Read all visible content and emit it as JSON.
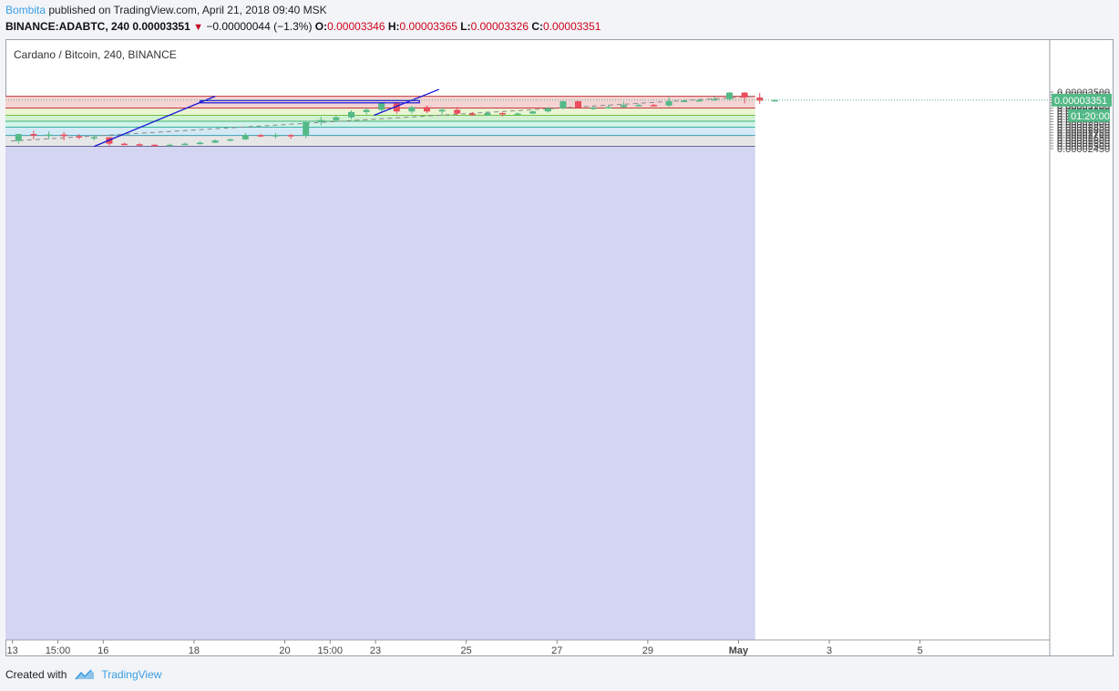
{
  "header": {
    "author": "Bombita",
    "published": "published on TradingView.com, April 21, 2018 09:40 MSK",
    "symbol": "BINANCE:ADABTC, 240",
    "price": "0.00003351",
    "change_icon": "down-triangle-icon",
    "change": "−0.00000044 (−1.3%)",
    "o_label": "O:",
    "o_value": "0.00003346",
    "h_label": "H:",
    "h_value": "0.00003365",
    "l_label": "L:",
    "l_value": "0.00003326",
    "c_label": "C:",
    "c_value": "0.00003351"
  },
  "chart_title": "Cardano / Bitcoin, 240, BINANCE",
  "footer": {
    "created_with": "Created with",
    "brand": "TradingView",
    "logo_icon": "tradingview-logo-icon"
  },
  "colors": {
    "up": "#53b987",
    "down": "#eb4d5c",
    "trend": "#1515d6",
    "zone_red": "#f5d3d4",
    "zone_yellow": "#eaf5d3",
    "zone_green": "#d2f0d2",
    "zone_teal": "#d2f3eb",
    "zone_blue": "#d3e9f5",
    "zone_gray": "#e6e6e6",
    "zone_purple": "#d4d4f3",
    "price_tag": "#53b987"
  },
  "chart_data": {
    "type": "candlestick",
    "y_ticks": [
      "0.00003500",
      "0.00003450",
      "0.00003400",
      "0.00003350",
      "0.00003300",
      "0.00003250",
      "0.00003200",
      "0.00003150",
      "0.00003100",
      "0.00003050",
      "0.00003000",
      "0.00002950",
      "0.00002900",
      "0.00002850",
      "0.00002800",
      "0.00002750",
      "0.00002700",
      "0.00002650",
      "0.00002600",
      "0.00002550",
      "0.00002500",
      "0.00002450"
    ],
    "x_ticks": [
      {
        "label": "13",
        "t": 0.1
      },
      {
        "label": "15:00",
        "t": 3.1
      },
      {
        "label": "16",
        "t": 6.1
      },
      {
        "label": "18",
        "t": 12.1
      },
      {
        "label": "20",
        "t": 18.1
      },
      {
        "label": "15:00",
        "t": 21.1
      },
      {
        "label": "23",
        "t": 24.1
      },
      {
        "label": "25",
        "t": 30.1
      },
      {
        "label": "27",
        "t": 36.1
      },
      {
        "label": "29",
        "t": 42.1
      },
      {
        "label": "May",
        "t": 48.1
      },
      {
        "label": "3",
        "t": 54.1
      },
      {
        "label": "5",
        "t": 60.1
      }
    ],
    "last_price": "0.00003351",
    "countdown": "01:20:00",
    "fib_levels": [
      3.421e-05,
      3.203e-05,
      3.067e-05,
      2.957e-05,
      2.848e-05,
      2.692e-05,
      2.492e-05
    ],
    "fib_zone_end_t": 49.2,
    "candles": [
      [
        2.59e-05,
        2.72e-05,
        2.58e-05,
        2.54e-05
      ],
      [
        2.72e-05,
        2.69e-05,
        2.78e-05,
        2.62e-05
      ],
      [
        2.69e-05,
        2.71e-05,
        2.77e-05,
        2.62e-05
      ],
      [
        2.71e-05,
        2.68e-05,
        2.76e-05,
        2.6e-05
      ],
      [
        2.68e-05,
        2.66e-05,
        2.72e-05,
        2.62e-05
      ],
      [
        2.66e-05,
        2.66e-05,
        2.7e-05,
        2.6e-05
      ],
      [
        2.66e-05,
        2.54e-05,
        2.66e-05,
        2.5e-05
      ],
      [
        2.54e-05,
        2.53e-05,
        2.56e-05,
        2.51e-05
      ],
      [
        2.53e-05,
        2.52e-05,
        2.55e-05,
        2.5e-05
      ],
      [
        2.52e-05,
        2.51e-05,
        2.53e-05,
        2.49e-05
      ],
      [
        2.51e-05,
        2.52e-05,
        2.54e-05,
        2.5e-05
      ],
      [
        2.52e-05,
        2.54e-05,
        2.56e-05,
        2.51e-05
      ],
      [
        2.54e-05,
        2.56e-05,
        2.58e-05,
        2.52e-05
      ],
      [
        2.56e-05,
        2.6e-05,
        2.62e-05,
        2.55e-05
      ],
      [
        2.6e-05,
        2.62e-05,
        2.64e-05,
        2.59e-05
      ],
      [
        2.62e-05,
        2.7e-05,
        2.74e-05,
        2.61e-05
      ],
      [
        2.7e-05,
        2.69e-05,
        2.72e-05,
        2.66e-05
      ],
      [
        2.69e-05,
        2.7e-05,
        2.74e-05,
        2.64e-05
      ],
      [
        2.7e-05,
        2.69e-05,
        2.72e-05,
        2.63e-05
      ],
      [
        2.69e-05,
        2.94e-05,
        2.96e-05,
        2.64e-05
      ],
      [
        2.94e-05,
        2.98e-05,
        3.04e-05,
        2.88e-05
      ],
      [
        2.98e-05,
        3.03e-05,
        3.06e-05,
        2.94e-05
      ],
      [
        3.03e-05,
        3.13e-05,
        3.16e-05,
        3e-05
      ],
      [
        3.13e-05,
        3.17e-05,
        3.2e-05,
        3.08e-05
      ],
      [
        3.17e-05,
        3.3e-05,
        3.31e-05,
        3.12e-05
      ],
      [
        3.29e-05,
        3.14e-05,
        3.3e-05,
        3.1e-05
      ],
      [
        3.14e-05,
        3.22e-05,
        3.24e-05,
        3.1e-05
      ],
      [
        3.22e-05,
        3.14e-05,
        3.25e-05,
        3.11e-05
      ],
      [
        3.14e-05,
        3.17e-05,
        3.21e-05,
        3.08e-05
      ],
      [
        3.17e-05,
        3.1e-05,
        3.22e-05,
        3.07e-05
      ],
      [
        3.1e-05,
        3.07e-05,
        3.13e-05,
        3.06e-05
      ],
      [
        3.07e-05,
        3.11e-05,
        3.14e-05,
        3.06e-05
      ],
      [
        3.11e-05,
        3.09e-05,
        3.12e-05,
        3.05e-05
      ],
      [
        3.09e-05,
        3.1e-05,
        3.12e-05,
        3.08e-05
      ],
      [
        3.1e-05,
        3.14e-05,
        3.16e-05,
        3.09e-05
      ],
      [
        3.14e-05,
        3.2e-05,
        3.22e-05,
        3.12e-05
      ],
      [
        3.2e-05,
        3.33e-05,
        3.34e-05,
        3.18e-05
      ],
      [
        3.33e-05,
        3.21e-05,
        3.34e-05,
        3.19e-05
      ],
      [
        3.21e-05,
        3.21e-05,
        3.23e-05,
        3.17e-05
      ],
      [
        3.21e-05,
        3.22e-05,
        3.26e-05,
        3.19e-05
      ],
      [
        3.22e-05,
        3.26e-05,
        3.32e-05,
        3.21e-05
      ],
      [
        3.26e-05,
        3.26e-05,
        3.29e-05,
        3.23e-05
      ],
      [
        3.26e-05,
        3.25e-05,
        3.28e-05,
        3.23e-05
      ],
      [
        3.25e-05,
        3.33e-05,
        3.41e-05,
        3.22e-05
      ],
      [
        3.33e-05,
        3.34e-05,
        3.35e-05,
        3.32e-05
      ],
      [
        3.34e-05,
        3.35e-05,
        3.38e-05,
        3.32e-05
      ],
      [
        3.35e-05,
        3.37e-05,
        3.41e-05,
        3.34e-05
      ],
      [
        3.37e-05,
        3.49e-05,
        3.5e-05,
        3.35e-05
      ],
      [
        3.49e-05,
        3.4e-05,
        3.5e-05,
        3.29e-05
      ],
      [
        3.4e-05,
        3.34e-05,
        3.48e-05,
        3.28e-05
      ],
      [
        3.346e-05,
        3.351e-05,
        3.365e-05,
        3.326e-05
      ]
    ]
  }
}
